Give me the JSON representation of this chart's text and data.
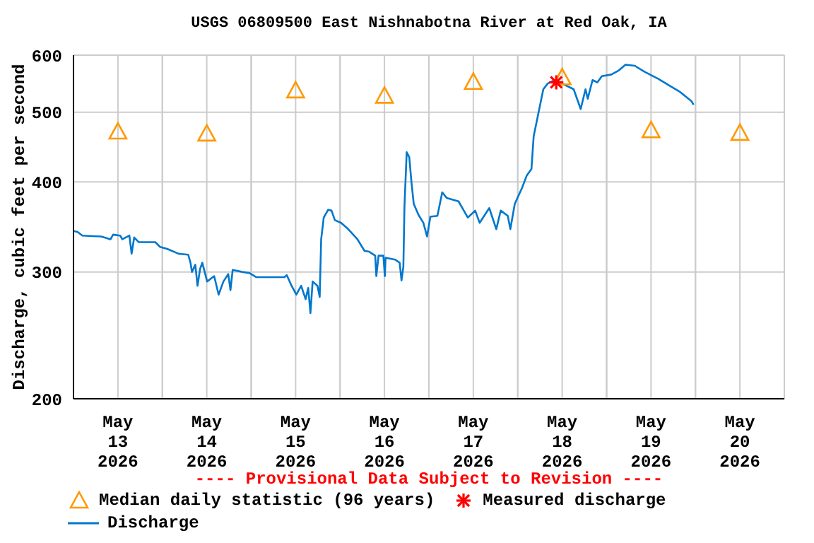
{
  "chart_data": {
    "type": "line",
    "title": "USGS 06809500 East Nishnabotna River at Red Oak, IA",
    "ylabel": "Discharge, cubic feet per second",
    "log": "y",
    "grid": true,
    "legend": "bottom",
    "annotations": [
      "---- Provisional Data Subject to Revision ----"
    ],
    "xlim": [
      "2026-05-13T00:00",
      "2026-05-21T00:00"
    ],
    "xticks": [
      {
        "value": "2026-05-13T00:00",
        "label": null
      },
      {
        "value": "2026-05-13T12:00",
        "label": "May\n13\n2026"
      },
      {
        "value": "2026-05-14T00:00",
        "label": null
      },
      {
        "value": "2026-05-14T12:00",
        "label": "May\n14\n2026"
      },
      {
        "value": "2026-05-15T00:00",
        "label": null
      },
      {
        "value": "2026-05-15T12:00",
        "label": "May\n15\n2026"
      },
      {
        "value": "2026-05-16T00:00",
        "label": null
      },
      {
        "value": "2026-05-16T12:00",
        "label": "May\n16\n2026"
      },
      {
        "value": "2026-05-17T00:00",
        "label": null
      },
      {
        "value": "2026-05-17T12:00",
        "label": "May\n17\n2026"
      },
      {
        "value": "2026-05-18T00:00",
        "label": null
      },
      {
        "value": "2026-05-18T12:00",
        "label": "May\n18\n2026"
      },
      {
        "value": "2026-05-19T00:00",
        "label": null
      },
      {
        "value": "2026-05-19T12:00",
        "label": "May\n19\n2026"
      },
      {
        "value": "2026-05-20T00:00",
        "label": null
      },
      {
        "value": "2026-05-20T12:00",
        "label": "May\n20\n2026"
      },
      {
        "value": "2026-05-21T00:00",
        "label": null
      }
    ],
    "ylim": [
      200,
      600
    ],
    "yticks": [
      200,
      300,
      400,
      500,
      600
    ],
    "series": [
      {
        "name": "Median daily statistic (96 years)",
        "type": "scatter",
        "marker": "triangle",
        "color": "#ff9900",
        "x": [
          "2026-05-13T12:00",
          "2026-05-14T12:00",
          "2026-05-15T12:00",
          "2026-05-16T12:00",
          "2026-05-17T12:00",
          "2026-05-18T12:00",
          "2026-05-19T12:00",
          "2026-05-20T12:00"
        ],
        "values": [
          470,
          467,
          536,
          527,
          551,
          559,
          472,
          468
        ]
      },
      {
        "name": "Measured discharge",
        "type": "scatter",
        "marker": "cross",
        "color": "#ff0000",
        "x": [
          "2026-05-18T10:24"
        ],
        "values": [
          550
        ]
      },
      {
        "name": "Discharge",
        "marker": "none",
        "color": "#0077cc",
        "x": [
          "2026-05-13T00:00",
          "2026-05-13T01:06",
          "2026-05-13T02:24",
          "2026-05-13T07:30",
          "2026-05-13T10:00",
          "2026-05-13T10:42",
          "2026-05-13T12:36",
          "2026-05-13T13:12",
          "2026-05-13T15:06",
          "2026-05-13T15:42",
          "2026-05-13T16:24",
          "2026-05-13T17:36",
          "2026-05-13T22:06",
          "2026-05-13T23:24",
          "2026-05-14T01:18",
          "2026-05-14T04:24",
          "2026-05-14T07:00",
          "2026-05-14T07:36",
          "2026-05-14T08:00",
          "2026-05-14T08:54",
          "2026-05-14T09:30",
          "2026-05-14T10:12",
          "2026-05-14T10:48",
          "2026-05-14T12:06",
          "2026-05-14T14:00",
          "2026-05-14T15:12",
          "2026-05-14T16:30",
          "2026-05-14T17:48",
          "2026-05-14T18:24",
          "2026-05-14T19:00",
          "2026-05-14T21:36",
          "2026-05-14T23:30",
          "2026-05-15T01:24",
          "2026-05-15T09:00",
          "2026-05-15T09:36",
          "2026-05-15T10:54",
          "2026-05-15T12:12",
          "2026-05-15T13:30",
          "2026-05-15T14:42",
          "2026-05-15T15:24",
          "2026-05-15T16:00",
          "2026-05-15T16:36",
          "2026-05-15T17:54",
          "2026-05-15T18:30",
          "2026-05-15T18:54",
          "2026-05-15T19:36",
          "2026-05-15T20:48",
          "2026-05-15T21:42",
          "2026-05-15T22:36",
          "2026-05-16T00:18",
          "2026-05-16T02:12",
          "2026-05-16T04:42",
          "2026-05-16T06:36",
          "2026-05-16T07:54",
          "2026-05-16T09:30",
          "2026-05-16T09:48",
          "2026-05-16T10:24",
          "2026-05-16T11:42",
          "2026-05-16T12:06",
          "2026-05-16T12:18",
          "2026-05-16T14:54",
          "2026-05-16T16:06",
          "2026-05-16T16:36",
          "2026-05-16T17:06",
          "2026-05-16T17:24",
          "2026-05-16T18:00",
          "2026-05-16T18:42",
          "2026-05-16T19:18",
          "2026-05-16T19:54",
          "2026-05-16T21:12",
          "2026-05-16T22:30",
          "2026-05-16T23:30",
          "2026-05-17T00:24",
          "2026-05-17T02:18",
          "2026-05-17T03:36",
          "2026-05-17T04:48",
          "2026-05-17T08:00",
          "2026-05-17T09:18",
          "2026-05-17T10:30",
          "2026-05-17T12:30",
          "2026-05-17T13:42",
          "2026-05-17T16:18",
          "2026-05-17T18:12",
          "2026-05-17T19:24",
          "2026-05-17T21:18",
          "2026-05-17T22:00",
          "2026-05-17T23:12",
          "2026-05-18T01:12",
          "2026-05-18T02:24",
          "2026-05-18T03:42",
          "2026-05-18T04:18",
          "2026-05-18T05:36",
          "2026-05-18T06:54",
          "2026-05-18T08:06",
          "2026-05-18T10:00",
          "2026-05-18T12:36",
          "2026-05-18T15:06",
          "2026-05-18T17:00",
          "2026-05-18T18:18",
          "2026-05-18T18:54",
          "2026-05-18T20:12",
          "2026-05-18T21:30",
          "2026-05-18T22:42",
          "2026-05-19T01:18",
          "2026-05-19T03:12",
          "2026-05-19T05:06",
          "2026-05-19T07:36",
          "2026-05-19T10:12",
          "2026-05-19T14:00",
          "2026-05-19T16:30",
          "2026-05-19T19:42",
          "2026-05-19T22:54",
          "2026-05-19T23:30"
        ],
        "values": [
          342,
          341,
          337,
          336,
          333,
          338,
          337,
          333,
          337,
          318,
          335,
          330,
          330,
          325,
          323,
          318,
          317,
          309,
          300,
          307,
          287,
          303,
          309,
          291,
          296,
          279,
          291,
          298,
          283,
          302,
          300,
          299,
          295,
          295,
          297,
          287,
          279,
          287,
          275,
          285,
          263,
          291,
          287,
          277,
          333,
          357,
          366,
          365,
          354,
          351,
          344,
          333,
          321,
          320,
          316,
          296,
          316,
          316,
          296,
          314,
          312,
          309,
          292,
          305,
          370,
          440,
          433,
          399,
          373,
          360,
          351,
          336,
          358,
          359,
          387,
          380,
          376,
          366,
          357,
          365,
          351,
          368,
          344,
          365,
          359,
          344,
          373,
          393,
          408,
          417,
          463,
          499,
          538,
          548,
          554,
          546,
          538,
          505,
          538,
          522,
          554,
          550,
          561,
          564,
          571,
          582,
          580,
          569,
          556,
          546,
          534,
          518,
          512
        ]
      }
    ]
  }
}
